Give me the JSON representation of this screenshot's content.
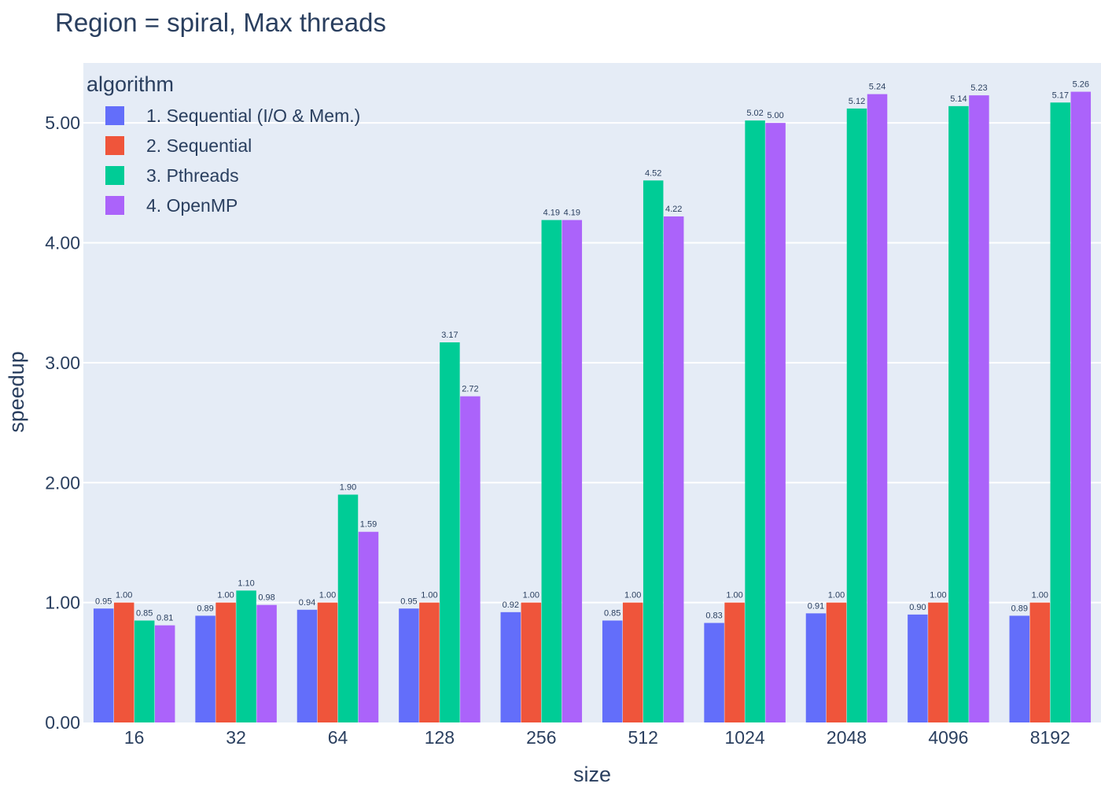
{
  "chart_data": {
    "type": "bar",
    "title": "Region = spiral, Max threads",
    "xlabel": "size",
    "ylabel": "speedup",
    "ylim": [
      0,
      5.5
    ],
    "yticks": [
      "0.00",
      "1.00",
      "2.00",
      "3.00",
      "4.00",
      "5.00"
    ],
    "grid": true,
    "legend": {
      "title": "algorithm",
      "placement": "top-left"
    },
    "categories": [
      "16",
      "32",
      "64",
      "128",
      "256",
      "512",
      "1024",
      "2048",
      "4096",
      "8192"
    ],
    "series": [
      {
        "name": "1. Sequential (I/O & Mem.)",
        "color": "#636efa",
        "values": [
          0.95,
          0.89,
          0.94,
          0.95,
          0.92,
          0.85,
          0.83,
          0.91,
          0.9,
          0.89
        ],
        "labels": [
          "0.95",
          "0.89",
          "0.94",
          "0.95",
          "0.92",
          "0.85",
          "0.83",
          "0.91",
          "0.90",
          "0.89"
        ]
      },
      {
        "name": "2. Sequential",
        "color": "#ef553b",
        "values": [
          1.0,
          1.0,
          1.0,
          1.0,
          1.0,
          1.0,
          1.0,
          1.0,
          1.0,
          1.0
        ],
        "labels": [
          "1.00",
          "1.00",
          "1.00",
          "1.00",
          "1.00",
          "1.00",
          "1.00",
          "1.00",
          "1.00",
          "1.00"
        ]
      },
      {
        "name": "3. Pthreads",
        "color": "#00cc96",
        "values": [
          0.85,
          1.1,
          1.9,
          3.17,
          4.19,
          4.52,
          5.02,
          5.12,
          5.14,
          5.17
        ],
        "labels": [
          "0.85",
          "1.10",
          "1.90",
          "3.17",
          "4.19",
          "4.52",
          "5.02",
          "5.12",
          "5.14",
          "5.17"
        ]
      },
      {
        "name": "4. OpenMP",
        "color": "#ab63fa",
        "values": [
          0.81,
          0.98,
          1.59,
          2.72,
          4.19,
          4.22,
          5.0,
          5.24,
          5.23,
          5.26
        ],
        "labels": [
          "0.81",
          "0.98",
          "1.59",
          "2.72",
          "4.19",
          "4.22",
          "5.00",
          "5.24",
          "5.23",
          "5.26"
        ]
      }
    ],
    "colors": {
      "plot_bg": "#e5ecf6",
      "grid": "#ffffff",
      "text": "#2a3f5f"
    }
  }
}
